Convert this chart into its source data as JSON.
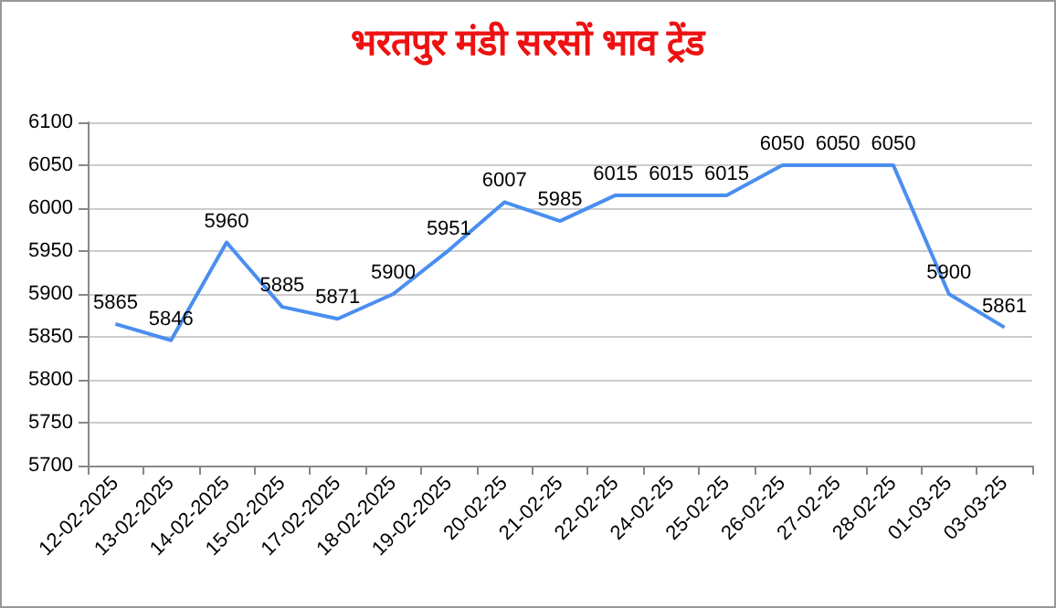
{
  "chart_data": {
    "type": "line",
    "title": "भरतपुर मंडी सरसों भाव ट्रेंड",
    "categories": [
      "12-02-2025",
      "13-02-2025",
      "14-02-2025",
      "15-02-2025",
      "17-02-2025",
      "18-02-2025",
      "19-02-2025",
      "20-02-25",
      "21-02-25",
      "22-02-25",
      "24-02-25",
      "25-02-25",
      "26-02-25",
      "27-02-25",
      "28-02-25",
      "01-03-25",
      "03-03-25"
    ],
    "series": [
      {
        "color": "#4a8ef0",
        "values": [
          5865,
          5846,
          5960,
          5885,
          5871,
          5900,
          5951,
          6007,
          5985,
          6015,
          6015,
          6015,
          6050,
          6050,
          6050,
          5900,
          5861
        ]
      }
    ],
    "ylim": [
      5700,
      6100
    ],
    "yticks": [
      5700,
      5750,
      5800,
      5850,
      5900,
      5950,
      6000,
      6050,
      6100
    ],
    "grid": "y",
    "data_labels": true,
    "marker": "none",
    "line_style": "solid"
  }
}
